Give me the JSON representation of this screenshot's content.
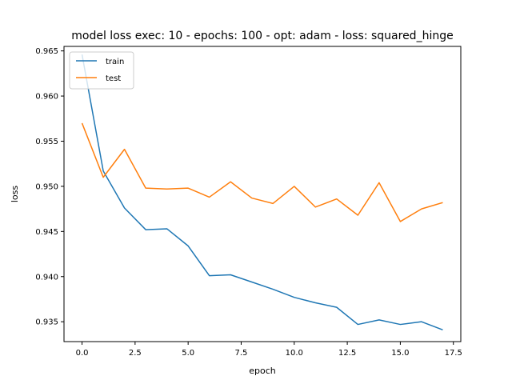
{
  "chart_data": {
    "type": "line",
    "title": "model loss exec: 10 - epochs: 100 - opt: adam - loss: squared_hinge",
    "xlabel": "epoch",
    "ylabel": "loss",
    "xlim": [
      -0.85,
      17.85
    ],
    "ylim": [
      0.9328,
      0.9655
    ],
    "x_ticks": [
      0.0,
      2.5,
      5.0,
      7.5,
      10.0,
      12.5,
      15.0,
      17.5
    ],
    "x_tick_labels": [
      "0.0",
      "2.5",
      "5.0",
      "7.5",
      "10.0",
      "12.5",
      "15.0",
      "17.5"
    ],
    "y_ticks": [
      0.935,
      0.94,
      0.945,
      0.95,
      0.955,
      0.96,
      0.965
    ],
    "y_tick_labels": [
      "0.935",
      "0.940",
      "0.945",
      "0.950",
      "0.955",
      "0.960",
      "0.965"
    ],
    "grid": false,
    "legend_position": "top-left",
    "x": [
      0,
      1,
      2,
      3,
      4,
      5,
      6,
      7,
      8,
      9,
      10,
      11,
      12,
      13,
      14,
      15,
      16,
      17
    ],
    "series": [
      {
        "name": "train",
        "color": "#1f77b4",
        "values": [
          0.9646,
          0.9517,
          0.9476,
          0.9452,
          0.9453,
          0.9434,
          0.9401,
          0.9402,
          0.9394,
          0.9386,
          0.9377,
          0.9371,
          0.9366,
          0.9347,
          0.9352,
          0.9347,
          0.935,
          0.9341
        ]
      },
      {
        "name": "test",
        "color": "#ff7f0e",
        "values": [
          0.957,
          0.951,
          0.9541,
          0.9498,
          0.9497,
          0.9498,
          0.9488,
          0.9505,
          0.9487,
          0.9481,
          0.95,
          0.9477,
          0.9486,
          0.9468,
          0.9504,
          0.9461,
          0.9475,
          0.9482
        ]
      }
    ]
  }
}
